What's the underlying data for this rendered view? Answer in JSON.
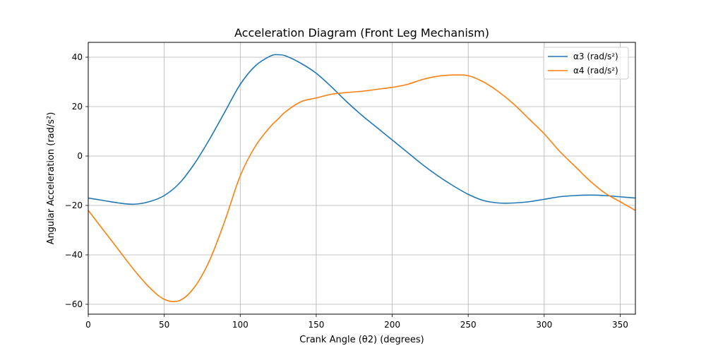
{
  "chart_data": {
    "type": "line",
    "title": "Acceleration Diagram (Front Leg Mechanism)",
    "xlabel": "Crank Angle (θ2) (degrees)",
    "ylabel": "Angular Acceleration (rad/s²)",
    "xlim": [
      0,
      360
    ],
    "ylim": [
      -64,
      46
    ],
    "xticks": [
      0,
      50,
      100,
      150,
      200,
      250,
      300,
      350
    ],
    "yticks": [
      -60,
      -40,
      -20,
      0,
      20,
      40
    ],
    "grid": true,
    "legend_position": "top-right",
    "x": [
      0,
      10,
      20,
      30,
      40,
      50,
      60,
      70,
      80,
      90,
      100,
      110,
      120,
      125,
      130,
      140,
      150,
      160,
      170,
      180,
      190,
      200,
      210,
      220,
      230,
      240,
      250,
      260,
      270,
      280,
      290,
      300,
      310,
      320,
      330,
      340,
      350,
      360
    ],
    "series": [
      {
        "name": "α3 (rad/s²)",
        "color": "#1f77b4",
        "values": [
          -17,
          -18,
          -19,
          -19.5,
          -18.5,
          -16,
          -11,
          -3,
          7,
          18,
          29,
          36.5,
          40.5,
          41,
          40.5,
          37.5,
          33.5,
          28,
          22,
          16.5,
          11.5,
          6.5,
          1.5,
          -3.5,
          -8,
          -12,
          -15.5,
          -18,
          -19,
          -19,
          -18.5,
          -17.5,
          -16.5,
          -16,
          -15.8,
          -16,
          -16.5,
          -17
        ]
      },
      {
        "name": "α4 (rad/s²)",
        "color": "#ff7f0e",
        "values": [
          -22,
          -30,
          -38,
          -46,
          -53,
          -58,
          -58.5,
          -53,
          -42,
          -26,
          -8,
          4,
          12,
          15,
          18,
          22,
          23.5,
          25,
          25.7,
          26.2,
          27,
          27.8,
          29,
          31,
          32.3,
          32.8,
          32.5,
          30,
          26,
          21,
          15,
          9,
          2,
          -4,
          -10,
          -15,
          -18.5,
          -22
        ]
      }
    ]
  }
}
